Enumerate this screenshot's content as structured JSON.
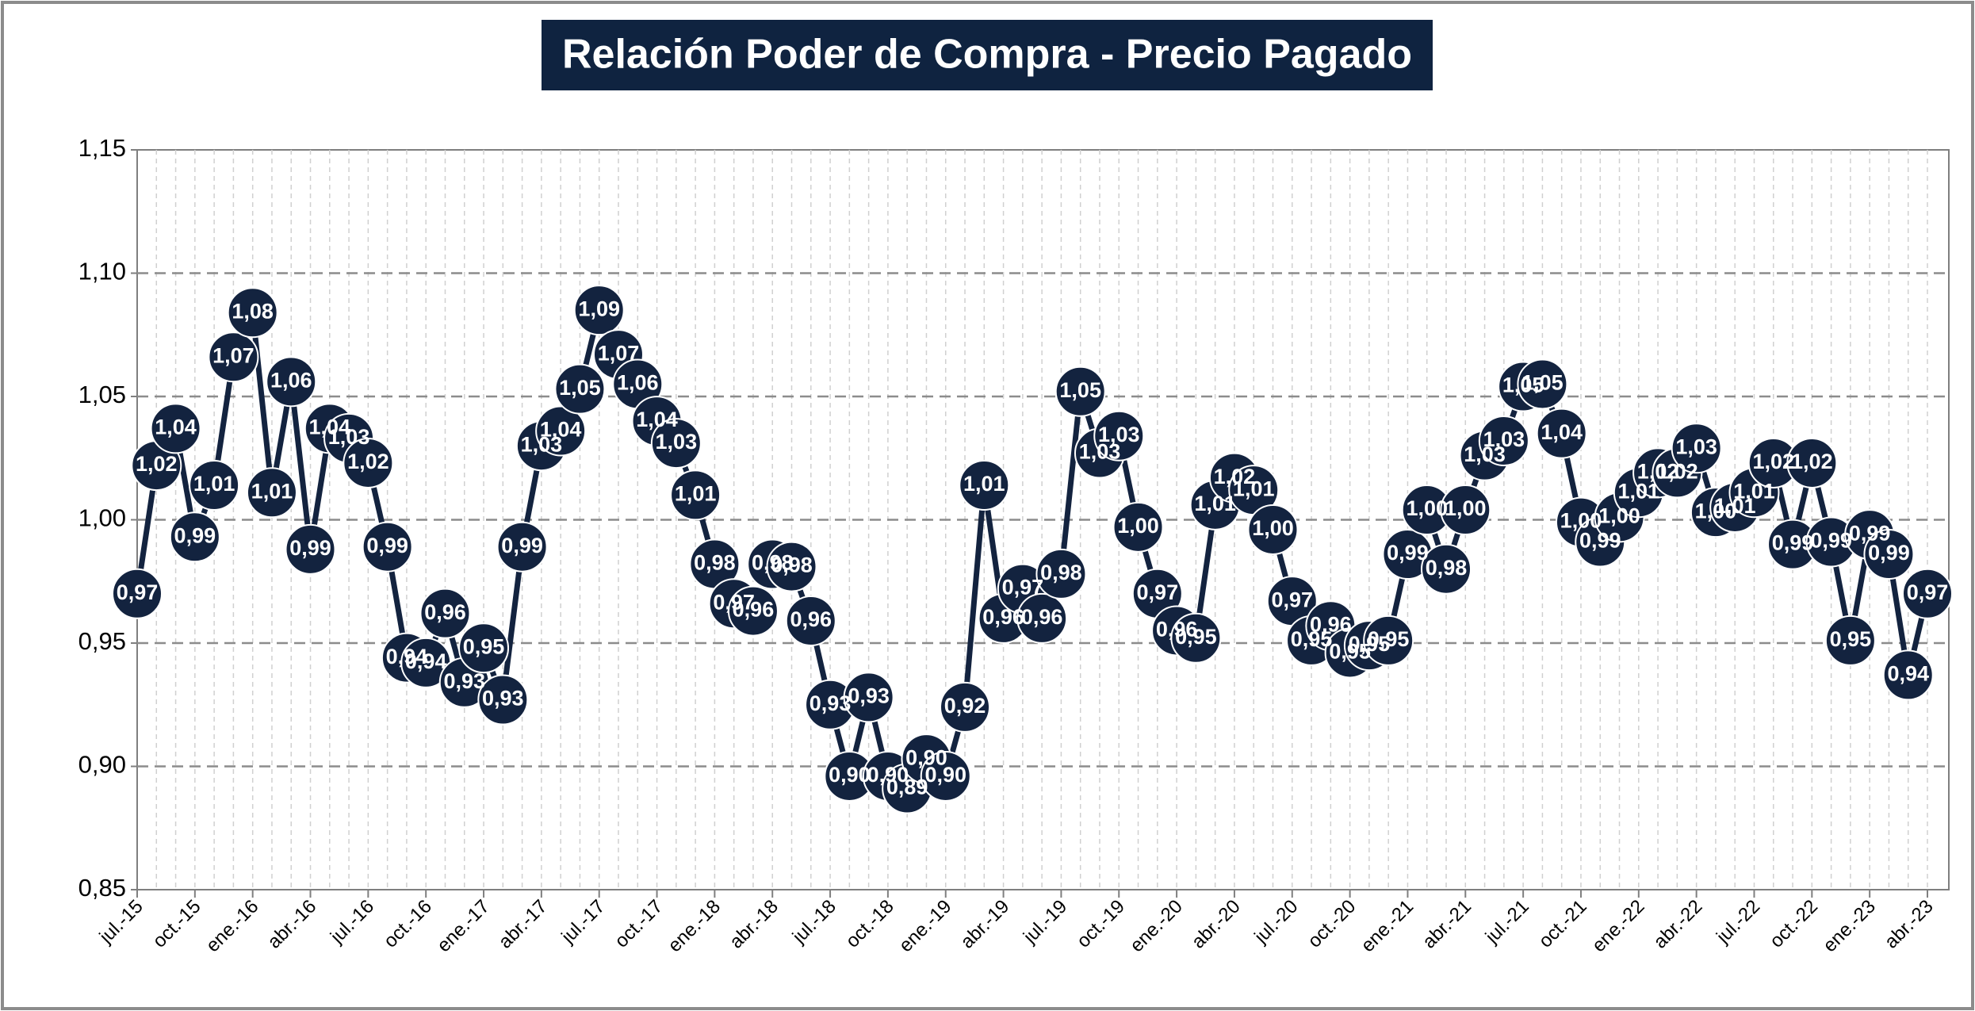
{
  "chart_data": {
    "type": "line",
    "title": "Relación Poder de Compra - Precio Pagado",
    "categories": [
      "jul.-15",
      null,
      null,
      "oct.-15",
      null,
      null,
      "ene.-16",
      null,
      null,
      "abr.-16",
      null,
      null,
      "jul.-16",
      null,
      null,
      "oct.-16",
      null,
      null,
      "ene.-17",
      null,
      null,
      "abr.-17",
      null,
      null,
      "jul.-17",
      null,
      null,
      "oct.-17",
      null,
      null,
      "ene.-18",
      null,
      null,
      "abr.-18",
      null,
      null,
      "jul.-18",
      null,
      null,
      "oct.-18",
      null,
      null,
      "ene.-19",
      null,
      null,
      "abr.-19",
      null,
      null,
      "jul.-19",
      null,
      null,
      "oct.-19",
      null,
      null,
      "ene.-20",
      null,
      null,
      "abr.-20",
      null,
      null,
      "jul.-20",
      null,
      null,
      "oct.-20",
      null,
      null,
      "ene.-21",
      null,
      null,
      "abr.-21",
      null,
      null,
      "jul.-21",
      null,
      null,
      "oct.-21",
      null,
      null,
      "ene.-22",
      null,
      null,
      "abr.-22",
      null,
      null,
      "jul.-22",
      null,
      null,
      "oct.-22",
      null,
      null,
      "ene.-23",
      null,
      null,
      "abr.-23"
    ],
    "values": [
      0.97,
      1.022,
      1.037,
      0.993,
      1.014,
      1.066,
      1.084,
      1.011,
      1.056,
      0.988,
      1.037,
      1.033,
      1.023,
      0.989,
      0.944,
      0.942,
      0.962,
      0.934,
      0.948,
      0.927,
      0.989,
      1.03,
      1.036,
      1.053,
      1.085,
      1.067,
      1.055,
      1.04,
      1.031,
      1.01,
      0.982,
      0.966,
      0.963,
      0.982,
      0.981,
      0.959,
      0.925,
      0.896,
      0.928,
      0.896,
      0.891,
      0.903,
      0.896,
      0.924,
      1.014,
      0.96,
      0.972,
      0.96,
      0.978,
      1.052,
      1.027,
      1.034,
      0.997,
      0.97,
      0.955,
      0.952,
      1.006,
      1.017,
      1.012,
      0.996,
      0.967,
      0.951,
      0.957,
      0.946,
      0.949,
      0.951,
      0.986,
      1.004,
      0.98,
      1.004,
      1.026,
      1.032,
      1.054,
      1.055,
      1.035,
      0.999,
      0.991,
      1.001,
      1.011,
      1.019,
      1.019,
      1.029,
      1.003,
      1.005,
      1.011,
      1.023,
      0.99,
      1.023,
      0.991,
      0.951,
      0.994,
      0.986,
      0.937,
      0.97
    ],
    "value_labels": [
      "0,97",
      "1,02",
      "1,04",
      "0,99",
      "1,01",
      "1,07",
      "1,08",
      "1,01",
      "1,06",
      "0,99",
      "1,04",
      "1,03",
      "1,02",
      "0,99",
      "0,94",
      "0,94",
      "0,96",
      "0,93",
      "0,95",
      "0,93",
      "0,99",
      "1,03",
      "1,04",
      "1,05",
      "1,09",
      "1,07",
      "1,06",
      "1,04",
      "1,03",
      "1,01",
      "0,98",
      "0,97",
      "0,96",
      "0,98",
      "0,98",
      "0,96",
      "0,93",
      "0,90",
      "0,93",
      "0,90",
      "0,89",
      "0,90",
      "0,90",
      "0,92",
      "1,01",
      "0,96",
      "0,97",
      "0,96",
      "0,98",
      "1,05",
      "1,03",
      "1,03",
      "1,00",
      "0,97",
      "0,96",
      "0,95",
      "1,01",
      "1,02",
      "1,01",
      "1,00",
      "0,97",
      "0,95",
      "0,96",
      "0,95",
      "0,95",
      "0,95",
      "0,99",
      "1,00",
      "0,98",
      "1,00",
      "1,03",
      "1,03",
      "1,05",
      "1,05",
      "1,04",
      "1,00",
      "0,99",
      "1,00",
      "1,01",
      "1,02",
      "1,02",
      "1,03",
      "1,00",
      "1,01",
      "1,01",
      "1,02",
      "0,99",
      "1,02",
      "0,99",
      "0,95",
      "0,99",
      "0,99",
      "0,94",
      "0,97"
    ],
    "color": "#13233f",
    "ylim": [
      0.85,
      1.15
    ],
    "yticks": [
      {
        "value": 0.85,
        "label": "0,85"
      },
      {
        "value": 0.9,
        "label": "0,90"
      },
      {
        "value": 0.95,
        "label": "0,95"
      },
      {
        "value": 1.0,
        "label": "1,00"
      },
      {
        "value": 1.05,
        "label": "1,05"
      },
      {
        "value": 1.1,
        "label": "1,10"
      },
      {
        "value": 1.15,
        "label": "1,15"
      }
    ],
    "grid": true
  }
}
